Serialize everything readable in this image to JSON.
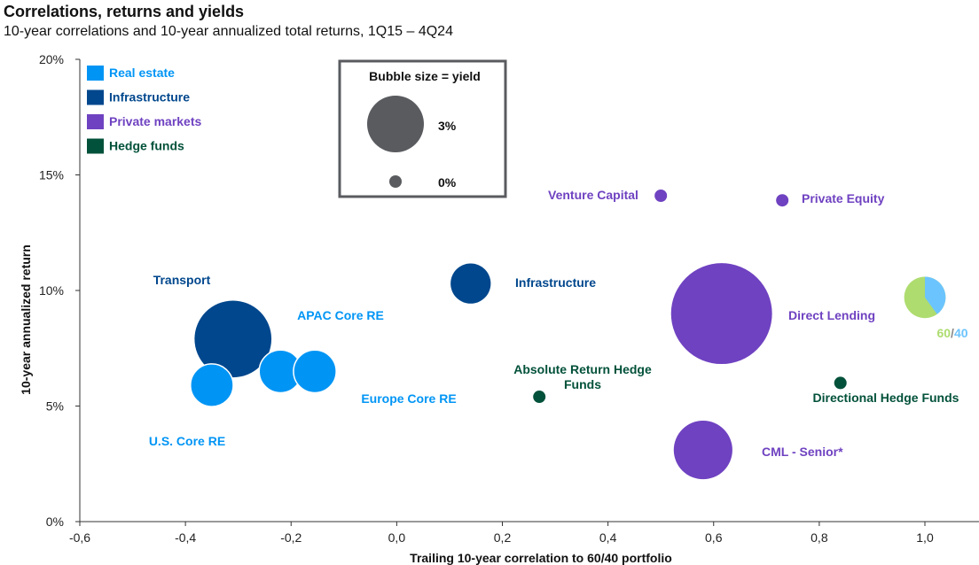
{
  "title": "Correlations, returns and yields",
  "subtitle": "10-year correlations and 10-year annualized total returns, 1Q15 – 4Q24",
  "colors": {
    "real_estate": "#0095F5",
    "infrastructure": "#00478D",
    "private_markets": "#6F42C1",
    "hedge_funds": "#02513A",
    "bubble_key": "#595B5F",
    "pie_green": "#AEDC6F",
    "pie_blue": "#6CC4FF"
  },
  "chart_data": {
    "type": "scatter",
    "title": "Correlations, returns and yields",
    "xlabel": "Trailing 10-year correlation to 60/40 portfolio",
    "ylabel": "10-year annualized return",
    "xlim": [
      -0.6,
      1.1
    ],
    "ylim": [
      0,
      20
    ],
    "x_ticks": [
      "-0,6",
      "-0,4",
      "-0,2",
      "0,0",
      "0,2",
      "0,4",
      "0,6",
      "0,8",
      "1,0"
    ],
    "y_ticks": [
      "0%",
      "5%",
      "10%",
      "15%",
      "20%"
    ],
    "legend": [
      {
        "label": "Real estate",
        "color": "#0095F5"
      },
      {
        "label": "Infrastructure",
        "color": "#00478D"
      },
      {
        "label": "Private markets",
        "color": "#6F42C1"
      },
      {
        "label": "Hedge funds",
        "color": "#02513A"
      }
    ],
    "size_key": {
      "title": "Bubble size = yield",
      "items": [
        {
          "label": "3%",
          "yield": 3.0
        },
        {
          "label": "0%",
          "yield": 0.0
        }
      ]
    },
    "points": [
      {
        "name": "Transport",
        "category": "infrastructure",
        "x": -0.31,
        "y": 7.9,
        "yield": 5.5
      },
      {
        "name": "Infrastructure",
        "category": "infrastructure",
        "x": 0.14,
        "y": 10.3,
        "yield": 1.5
      },
      {
        "name": "Europe Core RE",
        "category": "real_estate",
        "x": -0.155,
        "y": 6.5,
        "yield": 1.7
      },
      {
        "name": "APAC Core RE",
        "category": "real_estate",
        "x": -0.22,
        "y": 6.5,
        "yield": 1.7
      },
      {
        "name": "U.S. Core RE",
        "category": "real_estate",
        "x": -0.35,
        "y": 5.9,
        "yield": 1.7
      },
      {
        "name": "Absolute Return Hedge Funds",
        "category": "hedge_funds",
        "x": 0.27,
        "y": 5.4,
        "yield": 0.0
      },
      {
        "name": "Directional Hedge Funds",
        "category": "hedge_funds",
        "x": 0.84,
        "y": 6.0,
        "yield": 0.0
      },
      {
        "name": "Venture Capital",
        "category": "private_markets",
        "x": 0.5,
        "y": 14.1,
        "yield": 0.0
      },
      {
        "name": "Private Equity",
        "category": "private_markets",
        "x": 0.73,
        "y": 13.9,
        "yield": 0.0
      },
      {
        "name": "Direct Lending",
        "category": "private_markets",
        "x": 0.615,
        "y": 9.0,
        "yield": 9.5
      },
      {
        "name": "CML - Senior*",
        "category": "private_markets",
        "x": 0.58,
        "y": 3.1,
        "yield": 3.2
      }
    ],
    "portfolio_point": {
      "label_left": "60",
      "label_sep": "/",
      "label_right": "40",
      "x": 1.0,
      "y": 9.7,
      "yield": 1.6,
      "split": [
        60,
        40
      ]
    }
  }
}
